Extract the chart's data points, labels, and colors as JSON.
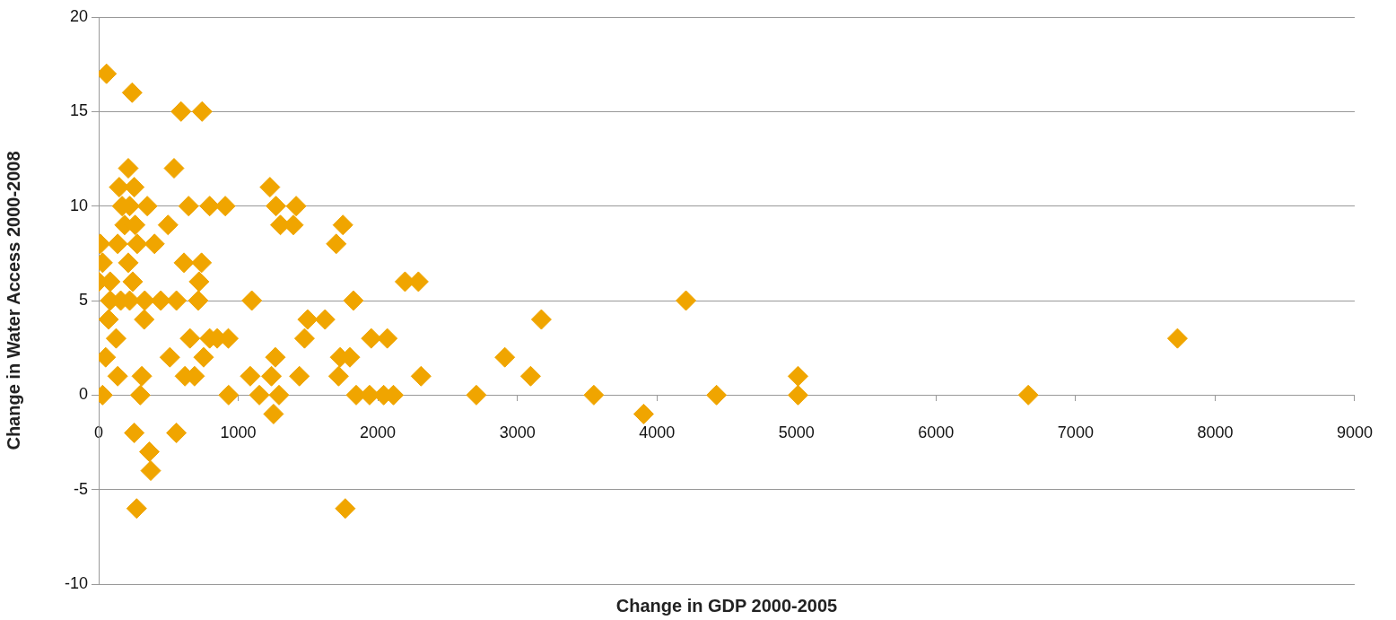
{
  "chart_data": {
    "type": "scatter",
    "xlabel": "Change in GDP 2000-2005",
    "ylabel": "Change in Water Access 2000-2008",
    "x": [
      56,
      240,
      590,
      741,
      212,
      540,
      147,
      255,
      1227,
      168,
      222,
      348,
      644,
      795,
      907,
      1270,
      1415,
      186,
      261,
      497,
      1302,
      1395,
      1750,
      11,
      136,
      276,
      400,
      1702,
      28,
      212,
      611,
      737,
      0,
      82,
      244,
      719,
      2195,
      2291,
      82,
      158,
      222,
      330,
      445,
      557,
      713,
      1097,
      1825,
      4208,
      71,
      326,
      1497,
      1622,
      3172,
      125,
      654,
      795,
      849,
      929,
      1475,
      1953,
      2068,
      7730,
      50,
      510,
      752,
      1266,
      1730,
      1800,
      2910,
      136,
      309,
      618,
      687,
      1086,
      1238,
      1438,
      1719,
      2310,
      3095,
      5011,
      28,
      298,
      931,
      1151,
      1292,
      1845,
      1941,
      2042,
      2112,
      2706,
      3548,
      4427,
      5011,
      6661,
      1253,
      3905,
      255,
      557,
      363,
      373,
      272,
      1767
    ],
    "values": [
      17,
      16,
      15,
      15,
      12,
      12,
      11,
      11,
      11,
      10,
      10,
      10,
      10,
      10,
      10,
      10,
      10,
      9,
      9,
      9,
      9,
      9,
      9,
      8,
      8,
      8,
      8,
      8,
      7,
      7,
      7,
      7,
      6,
      6,
      6,
      6,
      6,
      6,
      5,
      5,
      5,
      5,
      5,
      5,
      5,
      5,
      5,
      5,
      4,
      4,
      4,
      4,
      4,
      3,
      3,
      3,
      3,
      3,
      3,
      3,
      3,
      3,
      2,
      2,
      2,
      2,
      2,
      2,
      2,
      1,
      1,
      1,
      1,
      1,
      1,
      1,
      1,
      1,
      1,
      1,
      0,
      0,
      0,
      0,
      0,
      0,
      0,
      0,
      0,
      0,
      0,
      0,
      0,
      0,
      -1,
      -1,
      -2,
      -2,
      -3,
      -4,
      -6,
      -6
    ],
    "color": "#f0a500",
    "marker": "diamond",
    "xlim": [
      0,
      9000
    ],
    "xticks": [
      0,
      1000,
      2000,
      3000,
      4000,
      5000,
      6000,
      7000,
      8000,
      9000
    ],
    "ylim": [
      -10,
      20
    ],
    "yticks": [
      -10,
      -5,
      0,
      5,
      10,
      15,
      20
    ],
    "grid": "y"
  }
}
